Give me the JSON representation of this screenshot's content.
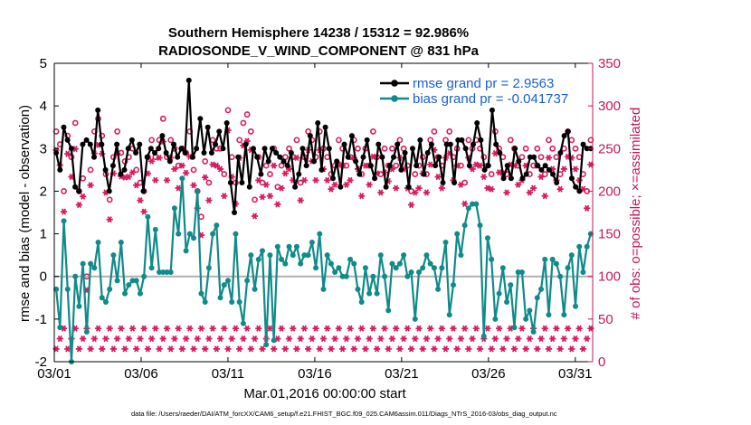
{
  "chart_data": {
    "type": "line",
    "title": "Southern Hemisphere 14238 / 15312 = 92.986%",
    "subtitle": "RADIOSONDE_V_WIND_COMPONENT @ 831 hPa",
    "xlabel": "Mar.01,2016 00:00:00 start",
    "ylabel": "rmse and bias (model - observation)",
    "ylabel_right": "# of obs: o=possible; ×=assimilated",
    "footnote": "data file: /Users/raeder/DAI/ATM_forcXX/CAM6_setup/f.e21.FHIST_BGC.f09_025.CAM6assim.011/Diags_NTrS_2016-03/obs_diag_output.nc",
    "xlim": [
      0,
      31
    ],
    "ylim": [
      -2,
      5
    ],
    "ylim_right": [
      0,
      350
    ],
    "x_ticks": [
      0,
      5,
      10,
      15,
      20,
      25,
      30
    ],
    "x_tick_labels": [
      "03/01",
      "03/06",
      "03/11",
      "03/16",
      "03/21",
      "03/26",
      "03/31"
    ],
    "y_ticks": [
      -2,
      -1,
      0,
      1,
      2,
      3,
      4,
      5
    ],
    "y_tick_labels": [
      "-2",
      "-1",
      "0",
      "1",
      "2",
      "3",
      "4",
      "5"
    ],
    "y_right_ticks": [
      0,
      50,
      100,
      150,
      200,
      250,
      300,
      350
    ],
    "y_right_tick_labels": [
      "0",
      "50",
      "100",
      "150",
      "200",
      "250",
      "300",
      "350"
    ],
    "colors": {
      "rmse": "#000000",
      "bias": "#108a8a",
      "obs": "#d81b60",
      "zero_line": "#b0b0b0",
      "right_axis": "#c2185b",
      "legend_text": "#1a5fd6"
    },
    "series": [
      {
        "name": "rmse grand pr = 2.9563",
        "legend_label": "rmse grand pr = 2.9563",
        "values": [
          2.9,
          2.5,
          3.5,
          3.2,
          3.0,
          2.1,
          2.0,
          3.1,
          3.2,
          3.1,
          2.8,
          3.9,
          3.1,
          2.5,
          2.0,
          2.6,
          3.1,
          2.4,
          2.5,
          3.0,
          3.2,
          2.9,
          3.1,
          2.0,
          2.8,
          3.0,
          2.9,
          3.0,
          3.3,
          2.9,
          2.7,
          3.1,
          2.8,
          3.0,
          2.9,
          4.6,
          2.8,
          3.0,
          3.7,
          2.9,
          3.5,
          2.9,
          3.1,
          3.4,
          3.0,
          3.6,
          2.2,
          1.5,
          2.8,
          2.2,
          3.1,
          2.1,
          3.0,
          2.8,
          2.4,
          3.0,
          2.7,
          3.0,
          2.9,
          2.8,
          2.7,
          2.6,
          2.9,
          2.1,
          2.4,
          3.0,
          2.6,
          3.3,
          2.7,
          3.6,
          2.5,
          3.5,
          3.0,
          2.3,
          2.7,
          2.1,
          3.1,
          2.8,
          3.3,
          2.7,
          2.4,
          2.8,
          3.2,
          2.6,
          2.3,
          3.1,
          2.8,
          2.1,
          2.6,
          2.8,
          3.1,
          2.5,
          2.9,
          2.1,
          3.0,
          2.6,
          3.2,
          2.4,
          2.9,
          3.1,
          2.6,
          2.8,
          2.2,
          3.1,
          3.1,
          2.2,
          3.2,
          3.2,
          3.0,
          2.6,
          3.1,
          3.6,
          3.2,
          2.5,
          2.6,
          3.9,
          3.1,
          2.9,
          2.3,
          2.6,
          2.3,
          3.0,
          2.7,
          2.3,
          2.4,
          2.8,
          2.8,
          2.6,
          2.5,
          2.6,
          2.5,
          2.4,
          2.2,
          2.9,
          3.3,
          3.4,
          2.3,
          2.1,
          2.0,
          3.1,
          3.0,
          3.0
        ]
      },
      {
        "name": "bias grand pr = -0.041737",
        "legend_label": "bias grand pr = -0.041737",
        "values": [
          -0.3,
          -1.2,
          1.3,
          -0.3,
          -2.0,
          0.0,
          -0.7,
          0.3,
          -1.3,
          0.3,
          0.2,
          0.8,
          -0.5,
          -0.6,
          -0.3,
          0.5,
          -0.1,
          0.8,
          -0.4,
          -0.2,
          -0.1,
          -0.1,
          -0.4,
          0.0,
          1.4,
          0.2,
          1.1,
          0.1,
          0.1,
          0.1,
          0.1,
          1.6,
          1.0,
          2.3,
          0.6,
          1.0,
          0.9,
          2.0,
          -0.4,
          -0.6,
          0.2,
          1.0,
          1.2,
          -0.5,
          -0.2,
          -0.1,
          -0.6,
          1.0,
          -0.6,
          -1.1,
          -0.1,
          0.5,
          -0.3,
          0.4,
          0.6,
          -1.6,
          0.5,
          -1.5,
          0.7,
          0.4,
          0.3,
          0.7,
          0.5,
          0.7,
          0.3,
          0.5,
          0.5,
          0.8,
          0.2,
          1.0,
          -0.3,
          0.5,
          0.3,
          0.1,
          0.2,
          0.0,
          0.0,
          0.4,
          0.3,
          -0.3,
          -0.6,
          0.2,
          -0.4,
          0.0,
          -0.4,
          0.5,
          0.0,
          -0.8,
          0.3,
          0.2,
          0.3,
          0.5,
          0.0,
          0.1,
          -1.0,
          0.1,
          0.2,
          0.5,
          0.3,
          0.2,
          -0.3,
          0.2,
          0.8,
          -0.9,
          -0.2,
          1.0,
          0.5,
          1.2,
          1.6,
          1.7,
          1.7,
          1.2,
          -1.4,
          0.9,
          0.4,
          -1.0,
          -0.4,
          0.2,
          -0.6,
          -0.2,
          -1.2,
          0.1,
          0.1,
          -1.0,
          -0.8,
          -1.3,
          -0.5,
          -0.3,
          0.4,
          -0.9,
          0.4,
          0.3,
          0.0,
          -0.9,
          0.2,
          0.5,
          -0.7,
          0.7,
          0.1,
          0.7,
          1.0
        ]
      }
    ],
    "obs_possible": [
      270,
      255,
      200,
      265,
      240,
      280,
      200,
      215,
      100,
      225,
      270,
      285,
      265,
      220,
      190,
      240,
      270,
      245,
      235,
      240,
      250,
      225,
      210,
      200,
      240,
      260,
      240,
      260,
      285,
      240,
      260,
      250,
      230,
      250,
      245,
      270,
      225,
      200,
      170,
      235,
      210,
      260,
      250,
      250,
      220,
      295,
      240,
      210,
      260,
      280,
      290,
      270,
      190,
      240,
      210,
      230,
      220,
      250,
      205,
      230,
      240,
      250,
      240,
      260,
      210,
      240,
      270,
      260,
      240,
      270,
      250,
      240,
      220,
      230,
      260,
      250,
      230,
      240,
      260,
      250,
      220,
      250,
      230,
      270,
      240,
      220,
      250,
      230,
      250,
      230,
      260,
      250,
      230,
      200,
      220,
      230,
      240,
      220,
      260,
      270,
      240,
      230,
      260,
      270,
      240,
      250,
      230,
      210,
      260,
      250,
      260,
      250,
      240,
      230,
      220,
      270,
      250,
      240,
      220,
      260,
      250,
      230,
      240,
      250,
      220,
      230,
      250,
      240,
      220,
      260,
      250,
      240,
      220,
      250,
      270,
      260,
      250,
      240,
      220,
      200,
      260
    ]
  }
}
